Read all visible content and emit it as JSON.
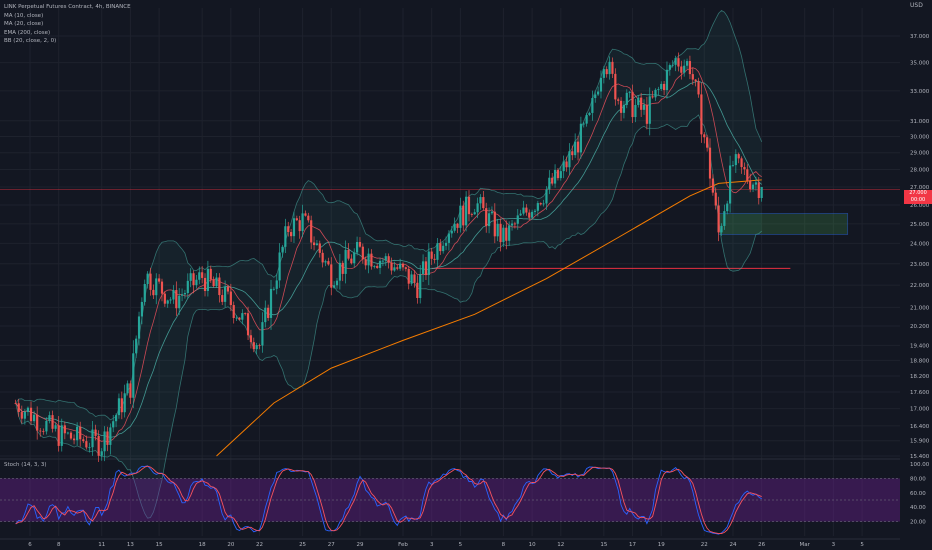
{
  "legend": {
    "title": "LINK Perpetual Futures Contract, 4h, BINANCE",
    "indicators": [
      "MA (10, close)",
      "MA (20, close)",
      "EMA (200, close)",
      "BB (20, close, 2, 0)"
    ]
  },
  "stoch_label": "Stoch (14, 3, 3)",
  "currency": "USD",
  "price_tag": {
    "price": "27.000",
    "time": "00:00"
  },
  "colors": {
    "background": "#131722",
    "up": "#26a69a",
    "down": "#ef5350",
    "ema": "#f57c00",
    "ma10": "#f7525f",
    "ma20": "#2962ff",
    "bb": "#4db6ac",
    "stoch_bg": "#7b1fa2",
    "zone": "#4caf50",
    "level": "#ff3344"
  },
  "chart_data": [
    {
      "type": "candlestick",
      "title": "LINK Perpetual Futures Contract, 4h, BINANCE",
      "y_scale": "log",
      "y_ticks": [
        37.0,
        35.0,
        33.0,
        31.0,
        30.0,
        29.0,
        28.0,
        27.0,
        26.0,
        25.0,
        24.0,
        23.0,
        22.0,
        21.0,
        20.2,
        19.4,
        18.8,
        18.2,
        17.6,
        17.0,
        16.4,
        15.9,
        15.4
      ],
      "y_tick_labels": [
        "37.000",
        "35.000",
        "33.000",
        "31.000",
        "30.000",
        "29.000",
        "28.000",
        "27.000",
        "26.000",
        "25.000",
        "24.000",
        "23.000",
        "22.000",
        "21.000",
        "20.200",
        "19.400",
        "18.800",
        "18.200",
        "17.600",
        "17.000",
        "16.400",
        "15.900",
        "15.400"
      ],
      "x_ticks": [
        "6",
        "8",
        "11",
        "13",
        "15",
        "18",
        "20",
        "22",
        "25",
        "27",
        "29",
        "Feb",
        "3",
        "5",
        "8",
        "10",
        "12",
        "15",
        "17",
        "19",
        "22",
        "24",
        "26",
        "Mar",
        "3",
        "5"
      ],
      "path_keypoints": [
        {
          "x": "Jan 5",
          "y": 17.2
        },
        {
          "x": "Jan 8",
          "y": 16.1
        },
        {
          "x": "Jan 11",
          "y": 15.8
        },
        {
          "x": "Jan 13",
          "y": 17.8
        },
        {
          "x": "Jan 14",
          "y": 22.5
        },
        {
          "x": "Jan 16",
          "y": 21.3
        },
        {
          "x": "Jan 18",
          "y": 22.4
        },
        {
          "x": "Jan 20",
          "y": 21.2
        },
        {
          "x": "Jan 22",
          "y": 19.4
        },
        {
          "x": "Jan 24",
          "y": 24.8
        },
        {
          "x": "Jan 25",
          "y": 25.2
        },
        {
          "x": "Jan 27",
          "y": 22.5
        },
        {
          "x": "Jan 29",
          "y": 23.6
        },
        {
          "x": "Jan 31",
          "y": 23.1
        },
        {
          "x": "Feb 2",
          "y": 22.0
        },
        {
          "x": "Feb 4",
          "y": 24.7
        },
        {
          "x": "Feb 6",
          "y": 26.2
        },
        {
          "x": "Feb 8",
          "y": 24.2
        },
        {
          "x": "Feb 10",
          "y": 26.0
        },
        {
          "x": "Feb 12",
          "y": 27.7
        },
        {
          "x": "Feb 14",
          "y": 31.0
        },
        {
          "x": "Feb 15",
          "y": 35.5
        },
        {
          "x": "Feb 16",
          "y": 32.5
        },
        {
          "x": "Feb 18",
          "y": 31.5
        },
        {
          "x": "Feb 20",
          "y": 35.2
        },
        {
          "x": "Feb 21",
          "y": 34.8
        },
        {
          "x": "Feb 22",
          "y": 30.0
        },
        {
          "x": "Feb 23",
          "y": 24.5
        },
        {
          "x": "Feb 24",
          "y": 28.3
        },
        {
          "x": "Feb 25",
          "y": 27.6
        },
        {
          "x": "Feb 26",
          "y": 27.0
        }
      ],
      "ema_200_keypoints": [
        {
          "x": "Jan 19",
          "y": 15.4
        },
        {
          "x": "Jan 23",
          "y": 17.2
        },
        {
          "x": "Jan 27",
          "y": 18.5
        },
        {
          "x": "Feb 1",
          "y": 19.6
        },
        {
          "x": "Feb 6",
          "y": 20.7
        },
        {
          "x": "Feb 11",
          "y": 22.3
        },
        {
          "x": "Feb 16",
          "y": 24.3
        },
        {
          "x": "Feb 21",
          "y": 26.5
        },
        {
          "x": "Feb 23",
          "y": 27.2
        },
        {
          "x": "Feb 26",
          "y": 27.4
        }
      ],
      "horizontal_levels": [
        {
          "y": 22.78,
          "from": "Feb 3",
          "to": "Feb 28"
        },
        {
          "y": 26.85,
          "from": "Jan 1",
          "to": "Mar 5"
        }
      ],
      "zone": {
        "x_from": "Feb 23",
        "x_to": "Mar 4",
        "y_low": 24.45,
        "y_high": 25.55
      },
      "last_price": 27.0
    },
    {
      "type": "line",
      "title": "Stoch (14, 3, 3)",
      "ylim": [
        0,
        100
      ],
      "y_ticks": [
        100.0,
        80.0,
        60.0,
        40.0,
        20.0
      ],
      "y_tick_labels": [
        "100.00",
        "80.00",
        "60.00",
        "40.00",
        "20.00"
      ],
      "band": [
        20,
        80
      ]
    }
  ]
}
